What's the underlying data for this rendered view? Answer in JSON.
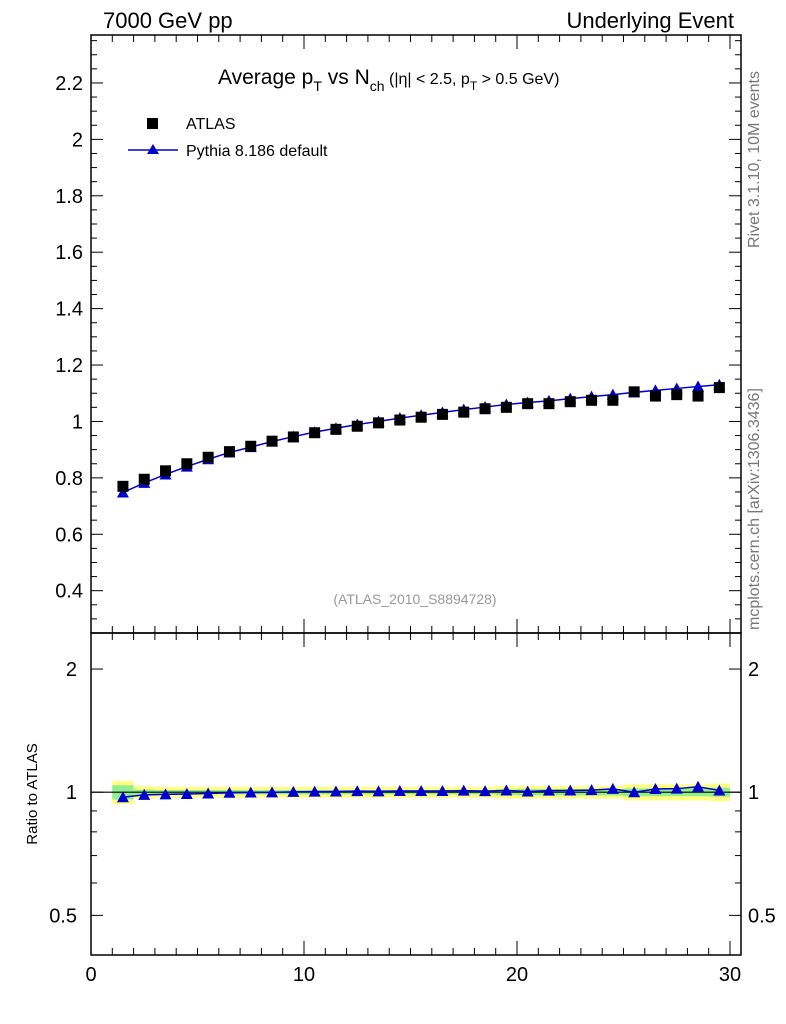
{
  "header": {
    "left": "7000 GeV pp",
    "right": "Underlying Event"
  },
  "side_labels": {
    "rivet": "Rivet 3.1.10,  10M events",
    "mcplots": "mcplots.cern.ch [arXiv:1306.3436]"
  },
  "colors": {
    "data": "#000000",
    "mc": "#0000cc",
    "band_inner": "#90ee90",
    "band_outer": "#ffff80"
  },
  "chart_data": [
    {
      "type": "scatter",
      "title_parts": {
        "a": "Average p",
        "a_sub": "T",
        "b": " vs N",
        "b_sub": "ch",
        "c": " (|η| < 2.5, p",
        "c_sub": "T",
        "d": " > 0.5 GeV)"
      },
      "annotation": "(ATLAS_2010_S8894728)",
      "xlim": [
        0,
        30
      ],
      "ylim": [
        0.25,
        2.37
      ],
      "yticks": [
        "0.4",
        "0.6",
        "0.8",
        "1",
        "1.2",
        "1.4",
        "1.6",
        "1.8",
        "2",
        "2.2"
      ],
      "legend": [
        "ATLAS",
        "Pythia 8.186 default"
      ],
      "x": [
        1.5,
        2.5,
        3.5,
        4.5,
        5.5,
        6.5,
        7.5,
        8.5,
        9.5,
        10.5,
        11.5,
        12.5,
        13.5,
        14.5,
        15.5,
        16.5,
        17.5,
        18.5,
        19.5,
        20.5,
        21.5,
        22.5,
        23.5,
        24.5,
        25.5,
        26.5,
        27.5,
        28.5,
        29.5
      ],
      "series": [
        {
          "name": "ATLAS",
          "values": [
            0.77,
            0.795,
            0.825,
            0.85,
            0.873,
            0.893,
            0.912,
            0.93,
            0.945,
            0.96,
            0.972,
            0.983,
            0.995,
            1.005,
            1.015,
            1.025,
            1.033,
            1.045,
            1.05,
            1.063,
            1.063,
            1.07,
            1.075,
            1.075,
            1.105,
            1.09,
            1.095,
            1.09,
            1.12
          ]
        },
        {
          "name": "Pythia 8.186 default",
          "values": [
            0.748,
            0.782,
            0.812,
            0.84,
            0.866,
            0.89,
            0.909,
            0.929,
            0.946,
            0.962,
            0.976,
            0.989,
            1.0,
            1.012,
            1.022,
            1.032,
            1.042,
            1.051,
            1.06,
            1.067,
            1.073,
            1.081,
            1.088,
            1.095,
            1.103,
            1.11,
            1.117,
            1.124,
            1.13
          ]
        }
      ]
    },
    {
      "type": "line",
      "ylabel": "Ratio to ATLAS",
      "xlim": [
        0,
        30
      ],
      "xticks": [
        "0",
        "10",
        "20",
        "30"
      ],
      "ylim_log": [
        0.4,
        2.45
      ],
      "yticks": [
        "0.5",
        "1",
        "2"
      ],
      "x": [
        1.5,
        2.5,
        3.5,
        4.5,
        5.5,
        6.5,
        7.5,
        8.5,
        9.5,
        10.5,
        11.5,
        12.5,
        13.5,
        14.5,
        15.5,
        16.5,
        17.5,
        18.5,
        19.5,
        20.5,
        21.5,
        22.5,
        23.5,
        24.5,
        25.5,
        26.5,
        27.5,
        28.5,
        29.5
      ],
      "ratio": [
        0.972,
        0.985,
        0.988,
        0.99,
        0.993,
        0.997,
        0.998,
        0.999,
        1.002,
        1.003,
        1.004,
        1.006,
        1.005,
        1.007,
        1.007,
        1.007,
        1.009,
        1.006,
        1.01,
        1.004,
        1.009,
        1.01,
        1.012,
        1.019,
        1.0,
        1.018,
        1.02,
        1.031,
        1.01
      ],
      "band_outer": [
        0.065,
        0.035,
        0.03,
        0.03,
        0.03,
        0.03,
        0.03,
        0.03,
        0.03,
        0.03,
        0.03,
        0.03,
        0.03,
        0.03,
        0.03,
        0.03,
        0.03,
        0.03,
        0.035,
        0.035,
        0.035,
        0.035,
        0.035,
        0.035,
        0.045,
        0.045,
        0.045,
        0.045,
        0.05
      ],
      "band_inner": [
        0.04,
        0.015,
        0.012,
        0.012,
        0.012,
        0.012,
        0.012,
        0.012,
        0.012,
        0.012,
        0.012,
        0.012,
        0.012,
        0.012,
        0.012,
        0.012,
        0.012,
        0.012,
        0.015,
        0.018,
        0.018,
        0.018,
        0.018,
        0.018,
        0.022,
        0.022,
        0.022,
        0.022,
        0.025
      ]
    }
  ]
}
